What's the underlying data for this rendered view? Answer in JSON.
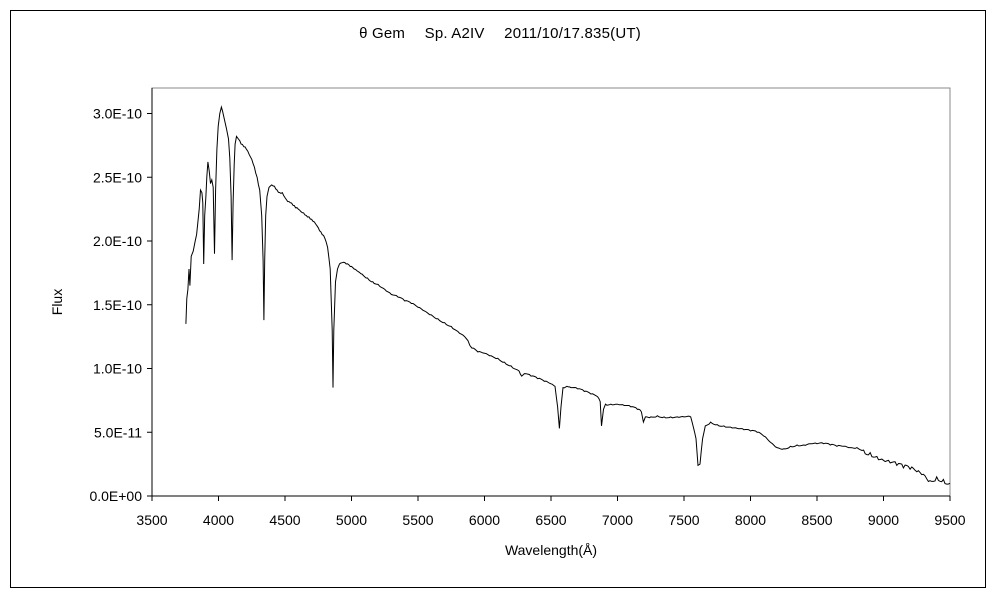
{
  "chart_data": {
    "type": "line",
    "title": "θ Gem　 Sp. A2IV　 2011/10/17.835(UT)",
    "xlabel": "Wavelength(Å)",
    "ylabel": "Flux",
    "xlim": [
      3500,
      9500
    ],
    "ylim": [
      0,
      3.2e-10
    ],
    "x_ticks": [
      3500,
      4000,
      4500,
      5000,
      5500,
      6000,
      6500,
      7000,
      7500,
      8000,
      8500,
      9000,
      9500
    ],
    "x_tick_labels": [
      "3500",
      "4000",
      "4500",
      "5000",
      "5500",
      "6000",
      "6500",
      "7000",
      "7500",
      "8000",
      "8500",
      "9000",
      "9500"
    ],
    "y_ticks": [
      0,
      5e-11,
      1e-10,
      1.5e-10,
      2e-10,
      2.5e-10,
      3e-10
    ],
    "y_tick_labels": [
      "0.0E+00",
      "5.0E-11",
      "1.0E-10",
      "1.5E-10",
      "2.0E-10",
      "2.5E-10",
      "3.0E-10"
    ],
    "grid": false,
    "legend": "none",
    "series": [
      {
        "color": "#000000",
        "points": [
          [
            3755,
            1.35e-10
          ],
          [
            3762,
            1.55e-10
          ],
          [
            3770,
            1.62e-10
          ],
          [
            3778,
            1.78e-10
          ],
          [
            3785,
            1.65e-10
          ],
          [
            3795,
            1.88e-10
          ],
          [
            3810,
            1.92e-10
          ],
          [
            3825,
            2e-10
          ],
          [
            3835,
            2.05e-10
          ],
          [
            3845,
            2.15e-10
          ],
          [
            3855,
            2.25e-10
          ],
          [
            3865,
            2.4e-10
          ],
          [
            3875,
            2.38e-10
          ],
          [
            3882,
            2.3e-10
          ],
          [
            3889,
            1.82e-10
          ],
          [
            3896,
            2.2e-10
          ],
          [
            3905,
            2.35e-10
          ],
          [
            3912,
            2.5e-10
          ],
          [
            3920,
            2.62e-10
          ],
          [
            3930,
            2.55e-10
          ],
          [
            3940,
            2.45e-10
          ],
          [
            3950,
            2.48e-10
          ],
          [
            3960,
            2.42e-10
          ],
          [
            3970,
            1.9e-10
          ],
          [
            3978,
            2.4e-10
          ],
          [
            3988,
            2.72e-10
          ],
          [
            3998,
            2.9e-10
          ],
          [
            4010,
            3e-10
          ],
          [
            4022,
            3.05e-10
          ],
          [
            4030,
            3.02e-10
          ],
          [
            4045,
            2.95e-10
          ],
          [
            4060,
            2.88e-10
          ],
          [
            4075,
            2.8e-10
          ],
          [
            4085,
            2.65e-10
          ],
          [
            4095,
            2.35e-10
          ],
          [
            4102,
            1.85e-10
          ],
          [
            4110,
            2.3e-10
          ],
          [
            4118,
            2.6e-10
          ],
          [
            4125,
            2.76e-10
          ],
          [
            4135,
            2.82e-10
          ],
          [
            4150,
            2.8e-10
          ],
          [
            4170,
            2.76e-10
          ],
          [
            4190,
            2.74e-10
          ],
          [
            4210,
            2.72e-10
          ],
          [
            4230,
            2.68e-10
          ],
          [
            4250,
            2.64e-10
          ],
          [
            4270,
            2.58e-10
          ],
          [
            4290,
            2.5e-10
          ],
          [
            4310,
            2.4e-10
          ],
          [
            4325,
            2.2e-10
          ],
          [
            4335,
            1.85e-10
          ],
          [
            4341,
            1.38e-10
          ],
          [
            4347,
            1.85e-10
          ],
          [
            4355,
            2.2e-10
          ],
          [
            4365,
            2.35e-10
          ],
          [
            4380,
            2.42e-10
          ],
          [
            4400,
            2.44e-10
          ],
          [
            4420,
            2.43e-10
          ],
          [
            4440,
            2.4e-10
          ],
          [
            4460,
            2.38e-10
          ],
          [
            4480,
            2.38e-10
          ],
          [
            4500,
            2.34e-10
          ],
          [
            4520,
            2.31e-10
          ],
          [
            4540,
            2.3e-10
          ],
          [
            4560,
            2.28e-10
          ],
          [
            4580,
            2.26e-10
          ],
          [
            4600,
            2.25e-10
          ],
          [
            4620,
            2.23e-10
          ],
          [
            4640,
            2.22e-10
          ],
          [
            4660,
            2.2e-10
          ],
          [
            4680,
            2.19e-10
          ],
          [
            4700,
            2.17e-10
          ],
          [
            4720,
            2.15e-10
          ],
          [
            4740,
            2.12e-10
          ],
          [
            4760,
            2.08e-10
          ],
          [
            4780,
            2.05e-10
          ],
          [
            4800,
            2.02e-10
          ],
          [
            4820,
            1.95e-10
          ],
          [
            4840,
            1.78e-10
          ],
          [
            4855,
            1.3e-10
          ],
          [
            4861,
            8.5e-11
          ],
          [
            4867,
            1.3e-10
          ],
          [
            4880,
            1.68e-10
          ],
          [
            4895,
            1.78e-10
          ],
          [
            4910,
            1.82e-10
          ],
          [
            4930,
            1.83e-10
          ],
          [
            4960,
            1.82e-10
          ],
          [
            4990,
            1.8e-10
          ],
          [
            5020,
            1.78e-10
          ],
          [
            5050,
            1.76e-10
          ],
          [
            5080,
            1.74e-10
          ],
          [
            5120,
            1.71e-10
          ],
          [
            5160,
            1.68e-10
          ],
          [
            5200,
            1.66e-10
          ],
          [
            5250,
            1.62e-10
          ],
          [
            5300,
            1.58e-10
          ],
          [
            5350,
            1.56e-10
          ],
          [
            5400,
            1.53e-10
          ],
          [
            5450,
            1.51e-10
          ],
          [
            5500,
            1.48e-10
          ],
          [
            5550,
            1.45e-10
          ],
          [
            5600,
            1.42e-10
          ],
          [
            5650,
            1.39e-10
          ],
          [
            5700,
            1.36e-10
          ],
          [
            5750,
            1.33e-10
          ],
          [
            5800,
            1.29e-10
          ],
          [
            5850,
            1.25e-10
          ],
          [
            5875,
            1.22e-10
          ],
          [
            5890,
            1.18e-10
          ],
          [
            5905,
            1.16e-10
          ],
          [
            5950,
            1.13e-10
          ],
          [
            6000,
            1.12e-10
          ],
          [
            6050,
            1.1e-10
          ],
          [
            6100,
            1.08e-10
          ],
          [
            6150,
            1.05e-10
          ],
          [
            6200,
            1.02e-10
          ],
          [
            6260,
            9.8e-11
          ],
          [
            6280,
            9.4e-11
          ],
          [
            6300,
            9.6e-11
          ],
          [
            6350,
            9.4e-11
          ],
          [
            6400,
            9.2e-11
          ],
          [
            6450,
            9e-11
          ],
          [
            6500,
            8.8e-11
          ],
          [
            6530,
            8.6e-11
          ],
          [
            6550,
            7e-11
          ],
          [
            6563,
            5.3e-11
          ],
          [
            6575,
            7e-11
          ],
          [
            6590,
            8.5e-11
          ],
          [
            6620,
            8.6e-11
          ],
          [
            6650,
            8.5e-11
          ],
          [
            6700,
            8.4e-11
          ],
          [
            6750,
            8.2e-11
          ],
          [
            6800,
            8e-11
          ],
          [
            6850,
            7.8e-11
          ],
          [
            6870,
            7.4e-11
          ],
          [
            6880,
            5.5e-11
          ],
          [
            6895,
            6.8e-11
          ],
          [
            6910,
            7.2e-11
          ],
          [
            6950,
            7.2e-11
          ],
          [
            7000,
            7.2e-11
          ],
          [
            7050,
            7.1e-11
          ],
          [
            7100,
            7e-11
          ],
          [
            7150,
            6.8e-11
          ],
          [
            7180,
            6.6e-11
          ],
          [
            7195,
            5.8e-11
          ],
          [
            7210,
            6.2e-11
          ],
          [
            7250,
            6.2e-11
          ],
          [
            7300,
            6.3e-11
          ],
          [
            7350,
            6.2e-11
          ],
          [
            7400,
            6.2e-11
          ],
          [
            7450,
            6.2e-11
          ],
          [
            7500,
            6.2e-11
          ],
          [
            7550,
            6.2e-11
          ],
          [
            7590,
            4.5e-11
          ],
          [
            7605,
            2.4e-11
          ],
          [
            7620,
            2.5e-11
          ],
          [
            7640,
            4.5e-11
          ],
          [
            7660,
            5.5e-11
          ],
          [
            7700,
            5.8e-11
          ],
          [
            7750,
            5.6e-11
          ],
          [
            7800,
            5.5e-11
          ],
          [
            7850,
            5.4e-11
          ],
          [
            7900,
            5.3e-11
          ],
          [
            7950,
            5.2e-11
          ],
          [
            8000,
            5.1e-11
          ],
          [
            8050,
            5e-11
          ],
          [
            8100,
            4.7e-11
          ],
          [
            8150,
            4.2e-11
          ],
          [
            8200,
            3.8e-11
          ],
          [
            8250,
            3.7e-11
          ],
          [
            8300,
            3.9e-11
          ],
          [
            8350,
            4e-11
          ],
          [
            8400,
            4e-11
          ],
          [
            8450,
            4.1e-11
          ],
          [
            8500,
            4.1e-11
          ],
          [
            8550,
            4.1e-11
          ],
          [
            8600,
            4e-11
          ],
          [
            8650,
            3.9e-11
          ],
          [
            8700,
            3.9e-11
          ],
          [
            8750,
            3.8e-11
          ],
          [
            8800,
            3.8e-11
          ],
          [
            8850,
            3.6e-11
          ],
          [
            8900,
            3.4e-11
          ],
          [
            8950,
            3.1e-11
          ],
          [
            9000,
            2.8e-11
          ],
          [
            9050,
            2.6e-11
          ],
          [
            9100,
            2.4e-11
          ],
          [
            9150,
            2.2e-11
          ],
          [
            9200,
            2.1e-11
          ],
          [
            9250,
            1.9e-11
          ],
          [
            9300,
            1.7e-11
          ],
          [
            9350,
            1.2e-11
          ],
          [
            9400,
            1.5e-11
          ],
          [
            9450,
            1.3e-11
          ],
          [
            9500,
            1e-11
          ]
        ]
      }
    ]
  }
}
